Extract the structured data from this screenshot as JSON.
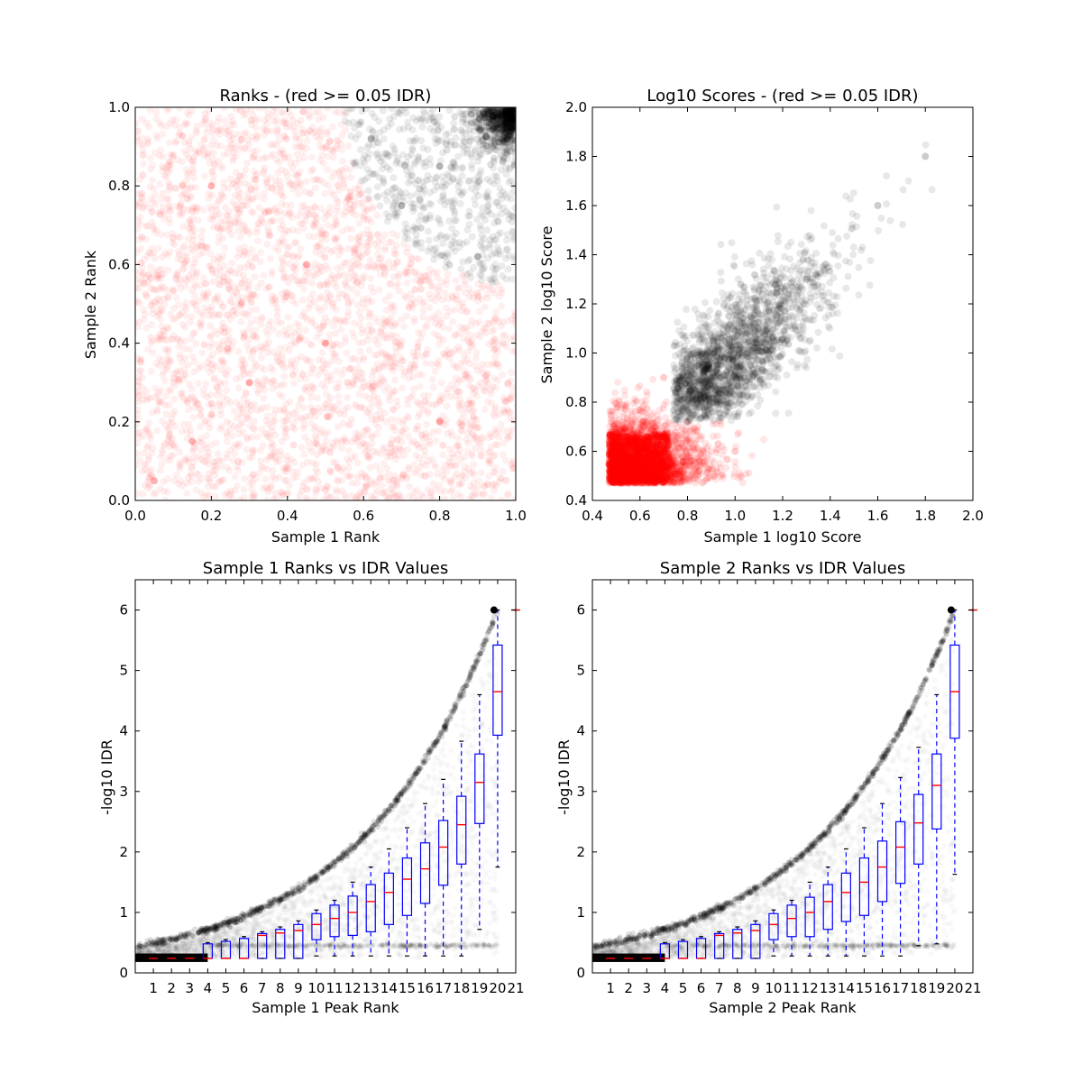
{
  "chart_data": [
    {
      "type": "scatter",
      "title": "Ranks - (red >= 0.05 IDR)",
      "xlabel": "Sample 1 Rank",
      "ylabel": "Sample 2 Rank",
      "xlim": [
        0.0,
        1.0
      ],
      "ylim": [
        0.0,
        1.0
      ],
      "xticks": [
        "0.0",
        "0.2",
        "0.4",
        "0.6",
        "0.8",
        "1.0"
      ],
      "yticks": [
        "0.0",
        "0.2",
        "0.4",
        "0.6",
        "0.8",
        "1.0"
      ],
      "colors": {
        "pass": "#000000",
        "fail": "#ff0000"
      },
      "point_opacity": 0.06,
      "idr_boundary": {
        "center": [
          1.0,
          1.0
        ],
        "radius": 0.45
      },
      "sample_points": [
        {
          "x": 0.95,
          "y": 0.97,
          "class": "pass"
        },
        {
          "x": 0.8,
          "y": 0.85,
          "class": "pass"
        },
        {
          "x": 0.7,
          "y": 0.75,
          "class": "pass"
        },
        {
          "x": 0.9,
          "y": 0.62,
          "class": "pass"
        },
        {
          "x": 0.62,
          "y": 0.92,
          "class": "pass"
        },
        {
          "x": 0.3,
          "y": 0.3,
          "class": "fail"
        },
        {
          "x": 0.15,
          "y": 0.15,
          "class": "fail"
        },
        {
          "x": 0.05,
          "y": 0.05,
          "class": "fail"
        },
        {
          "x": 0.45,
          "y": 0.6,
          "class": "fail"
        },
        {
          "x": 0.8,
          "y": 0.2,
          "class": "fail"
        },
        {
          "x": 0.2,
          "y": 0.8,
          "class": "fail"
        },
        {
          "x": 0.5,
          "y": 0.4,
          "class": "fail"
        }
      ]
    },
    {
      "type": "scatter",
      "title": "Log10 Scores - (red >= 0.05 IDR)",
      "xlabel": "Sample 1 log10 Score",
      "ylabel": "Sample 2 log10 Score",
      "xlim": [
        0.4,
        2.0
      ],
      "ylim": [
        0.4,
        2.0
      ],
      "xticks": [
        "0.4",
        "0.6",
        "0.8",
        "1.0",
        "1.2",
        "1.4",
        "1.6",
        "1.8",
        "2.0"
      ],
      "yticks": [
        "0.4",
        "0.6",
        "0.8",
        "1.0",
        "1.2",
        "1.4",
        "1.6",
        "1.8",
        "2.0"
      ],
      "colors": {
        "pass": "#000000",
        "fail": "#ff0000"
      },
      "point_opacity": 0.08,
      "sample_points": [
        {
          "x": 0.5,
          "y": 0.5,
          "class": "fail"
        },
        {
          "x": 0.6,
          "y": 0.6,
          "class": "fail"
        },
        {
          "x": 0.7,
          "y": 0.9,
          "class": "fail"
        },
        {
          "x": 1.0,
          "y": 0.6,
          "class": "fail"
        },
        {
          "x": 0.9,
          "y": 0.9,
          "class": "pass"
        },
        {
          "x": 1.1,
          "y": 1.1,
          "class": "pass"
        },
        {
          "x": 1.3,
          "y": 1.3,
          "class": "pass"
        },
        {
          "x": 1.6,
          "y": 1.6,
          "class": "pass"
        },
        {
          "x": 1.8,
          "y": 1.8,
          "class": "pass"
        }
      ]
    },
    {
      "type": "box",
      "title": "Sample 1 Ranks vs IDR Values",
      "xlabel": "Sample 1 Peak Rank",
      "ylabel": "-log10 IDR",
      "ylim": [
        0,
        6.5
      ],
      "yticks": [
        "0",
        "1",
        "2",
        "3",
        "4",
        "5",
        "6"
      ],
      "categories": [
        "1",
        "2",
        "3",
        "4",
        "5",
        "6",
        "7",
        "8",
        "9",
        "10",
        "11",
        "12",
        "13",
        "14",
        "15",
        "16",
        "17",
        "18",
        "19",
        "20",
        "21"
      ],
      "colors": {
        "box": "#0000ff",
        "median": "#ff0000",
        "points": "#000000"
      },
      "boxes": [
        {
          "whislo": 0.24,
          "q1": 0.24,
          "med": 0.24,
          "q3": 0.24,
          "whishi": 0.24
        },
        {
          "whislo": 0.24,
          "q1": 0.24,
          "med": 0.24,
          "q3": 0.24,
          "whishi": 0.24
        },
        {
          "whislo": 0.24,
          "q1": 0.24,
          "med": 0.24,
          "q3": 0.24,
          "whishi": 0.24
        },
        {
          "whislo": 0.24,
          "q1": 0.24,
          "med": 0.24,
          "q3": 0.48,
          "whishi": 0.5
        },
        {
          "whislo": 0.24,
          "q1": 0.24,
          "med": 0.24,
          "q3": 0.52,
          "whishi": 0.55
        },
        {
          "whislo": 0.24,
          "q1": 0.24,
          "med": 0.24,
          "q3": 0.57,
          "whishi": 0.6
        },
        {
          "whislo": 0.24,
          "q1": 0.24,
          "med": 0.62,
          "q3": 0.65,
          "whishi": 0.68
        },
        {
          "whislo": 0.24,
          "q1": 0.24,
          "med": 0.66,
          "q3": 0.72,
          "whishi": 0.76
        },
        {
          "whislo": 0.24,
          "q1": 0.24,
          "med": 0.7,
          "q3": 0.8,
          "whishi": 0.86
        },
        {
          "whislo": 0.28,
          "q1": 0.55,
          "med": 0.8,
          "q3": 0.98,
          "whishi": 1.04
        },
        {
          "whislo": 0.28,
          "q1": 0.6,
          "med": 0.9,
          "q3": 1.12,
          "whishi": 1.2
        },
        {
          "whislo": 0.28,
          "q1": 0.62,
          "med": 1.0,
          "q3": 1.27,
          "whishi": 1.5
        },
        {
          "whislo": 0.28,
          "q1": 0.68,
          "med": 1.18,
          "q3": 1.46,
          "whishi": 1.75
        },
        {
          "whislo": 0.28,
          "q1": 0.8,
          "med": 1.33,
          "q3": 1.65,
          "whishi": 2.05
        },
        {
          "whislo": 0.28,
          "q1": 0.95,
          "med": 1.55,
          "q3": 1.9,
          "whishi": 2.4
        },
        {
          "whislo": 0.28,
          "q1": 1.15,
          "med": 1.72,
          "q3": 2.15,
          "whishi": 2.8
        },
        {
          "whislo": 0.28,
          "q1": 1.45,
          "med": 2.08,
          "q3": 2.52,
          "whishi": 3.2
        },
        {
          "whislo": 0.28,
          "q1": 1.8,
          "med": 2.45,
          "q3": 2.92,
          "whishi": 3.83
        },
        {
          "whislo": 0.72,
          "q1": 2.47,
          "med": 3.15,
          "q3": 3.62,
          "whishi": 4.6
        },
        {
          "whislo": 1.75,
          "q1": 3.93,
          "med": 4.65,
          "q3": 5.42,
          "whishi": 6.0
        },
        {
          "whislo": 6.0,
          "q1": 6.0,
          "med": 6.0,
          "q3": 6.0,
          "whishi": 6.0
        }
      ]
    },
    {
      "type": "box",
      "title": "Sample 2 Ranks vs IDR Values",
      "xlabel": "Sample 2 Peak Rank",
      "ylabel": "-log10 IDR",
      "ylim": [
        0,
        6.5
      ],
      "yticks": [
        "0",
        "1",
        "2",
        "3",
        "4",
        "5",
        "6"
      ],
      "categories": [
        "1",
        "2",
        "3",
        "4",
        "5",
        "6",
        "7",
        "8",
        "9",
        "10",
        "11",
        "12",
        "13",
        "14",
        "15",
        "16",
        "17",
        "18",
        "19",
        "20",
        "21"
      ],
      "colors": {
        "box": "#0000ff",
        "median": "#ff0000",
        "points": "#000000"
      },
      "boxes": [
        {
          "whislo": 0.24,
          "q1": 0.24,
          "med": 0.24,
          "q3": 0.24,
          "whishi": 0.24
        },
        {
          "whislo": 0.24,
          "q1": 0.24,
          "med": 0.24,
          "q3": 0.24,
          "whishi": 0.24
        },
        {
          "whislo": 0.24,
          "q1": 0.24,
          "med": 0.24,
          "q3": 0.24,
          "whishi": 0.24
        },
        {
          "whislo": 0.24,
          "q1": 0.24,
          "med": 0.24,
          "q3": 0.48,
          "whishi": 0.5
        },
        {
          "whislo": 0.24,
          "q1": 0.24,
          "med": 0.24,
          "q3": 0.52,
          "whishi": 0.55
        },
        {
          "whislo": 0.24,
          "q1": 0.24,
          "med": 0.24,
          "q3": 0.57,
          "whishi": 0.6
        },
        {
          "whislo": 0.24,
          "q1": 0.24,
          "med": 0.62,
          "q3": 0.65,
          "whishi": 0.68
        },
        {
          "whislo": 0.24,
          "q1": 0.24,
          "med": 0.66,
          "q3": 0.72,
          "whishi": 0.76
        },
        {
          "whislo": 0.24,
          "q1": 0.24,
          "med": 0.7,
          "q3": 0.8,
          "whishi": 0.86
        },
        {
          "whislo": 0.28,
          "q1": 0.55,
          "med": 0.8,
          "q3": 0.98,
          "whishi": 1.04
        },
        {
          "whislo": 0.28,
          "q1": 0.6,
          "med": 0.9,
          "q3": 1.12,
          "whishi": 1.2
        },
        {
          "whislo": 0.28,
          "q1": 0.6,
          "med": 1.0,
          "q3": 1.25,
          "whishi": 1.5
        },
        {
          "whislo": 0.28,
          "q1": 0.72,
          "med": 1.18,
          "q3": 1.46,
          "whishi": 1.75
        },
        {
          "whislo": 0.28,
          "q1": 0.85,
          "med": 1.33,
          "q3": 1.65,
          "whishi": 2.05
        },
        {
          "whislo": 0.28,
          "q1": 0.95,
          "med": 1.5,
          "q3": 1.9,
          "whishi": 2.4
        },
        {
          "whislo": 0.28,
          "q1": 1.18,
          "med": 1.75,
          "q3": 2.18,
          "whishi": 2.8
        },
        {
          "whislo": 0.28,
          "q1": 1.48,
          "med": 2.08,
          "q3": 2.5,
          "whishi": 3.23
        },
        {
          "whislo": 0.45,
          "q1": 1.8,
          "med": 2.48,
          "q3": 2.95,
          "whishi": 3.73
        },
        {
          "whislo": 0.48,
          "q1": 2.38,
          "med": 3.1,
          "q3": 3.62,
          "whishi": 4.6
        },
        {
          "whislo": 1.63,
          "q1": 3.88,
          "med": 4.65,
          "q3": 5.42,
          "whishi": 6.0
        },
        {
          "whislo": 6.0,
          "q1": 6.0,
          "med": 6.0,
          "q3": 6.0,
          "whishi": 6.0
        }
      ]
    }
  ]
}
